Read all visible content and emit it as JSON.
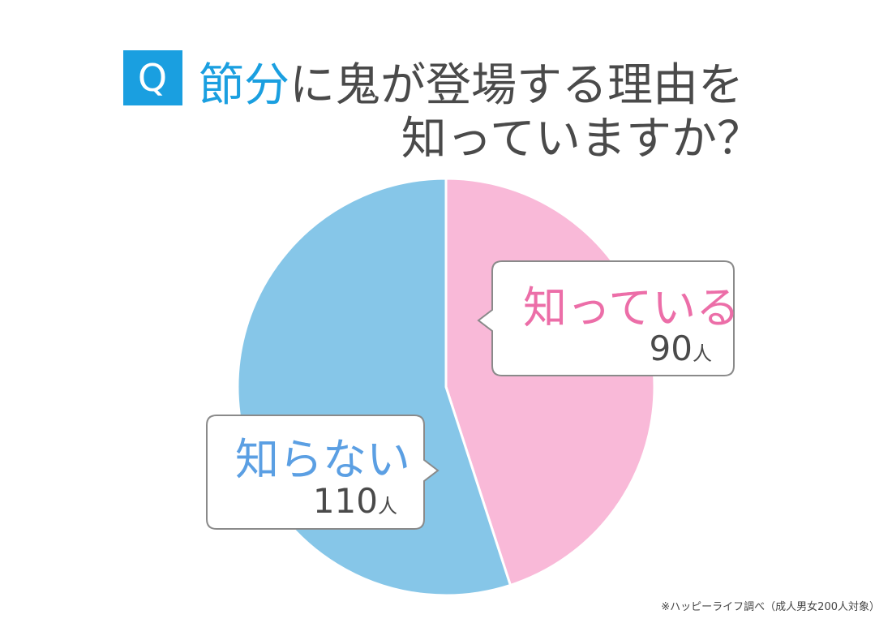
{
  "chart_data": {
    "type": "pie",
    "title_badge": "Q",
    "title_highlight": "節分",
    "title_rest": "に鬼が登場する理由を",
    "title_line2": "知っていますか？",
    "categories": [
      "知っている",
      "知らない"
    ],
    "values": [
      90,
      110
    ],
    "colors": [
      "#f9b9d8",
      "#86c6e8"
    ],
    "label_colors": [
      "#ec6ea8",
      "#5b9fe3"
    ],
    "unit": "人",
    "note": "※ハッピーライフ調べ（成人男女200人対象）"
  }
}
